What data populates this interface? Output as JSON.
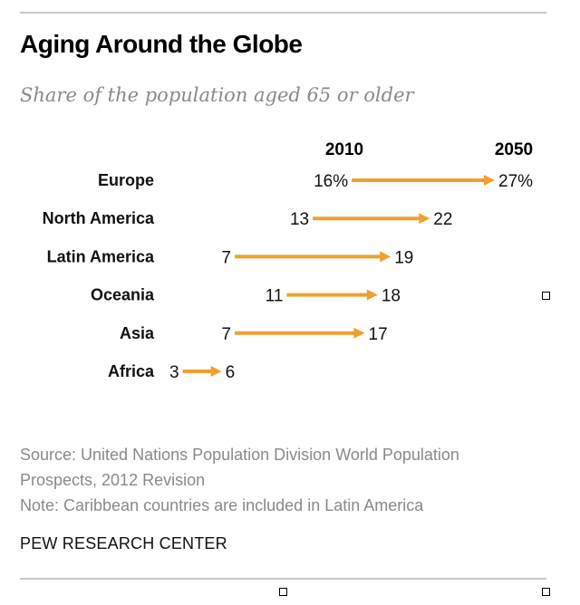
{
  "title": "Aging Around the Globe",
  "subtitle": "Share of the population aged 65 or older",
  "colors": {
    "arrow": "#f0a030",
    "text": "#000000",
    "muted": "#8a8a8a",
    "rule": "#c8c8c8"
  },
  "chart_data": {
    "type": "arrow-dot",
    "title": "Aging Around the Globe",
    "subtitle": "Share of the population aged 65 or older",
    "unit": "%",
    "series": [
      {
        "name": "2010"
      },
      {
        "name": "2050"
      }
    ],
    "column_headers": [
      "2010",
      "2050"
    ],
    "categories": [
      "Europe",
      "North America",
      "Latin America",
      "Oceania",
      "Asia",
      "Africa"
    ],
    "values_2010": [
      16,
      13,
      7,
      11,
      7,
      3
    ],
    "values_2050": [
      27,
      22,
      19,
      18,
      17,
      6
    ],
    "labels_2010": [
      "16%",
      "13",
      "7",
      "11",
      "7",
      "3"
    ],
    "labels_2050": [
      "27%",
      "22",
      "19",
      "18",
      "17",
      "6"
    ],
    "xlim": [
      0,
      30
    ]
  },
  "footer": {
    "source_line1": "Source: United Nations Population Division World Population",
    "source_line2": "Prospects, 2012 Revision",
    "note": "Note: Caribbean countries are included in Latin America",
    "brand": "PEW RESEARCH CENTER"
  }
}
